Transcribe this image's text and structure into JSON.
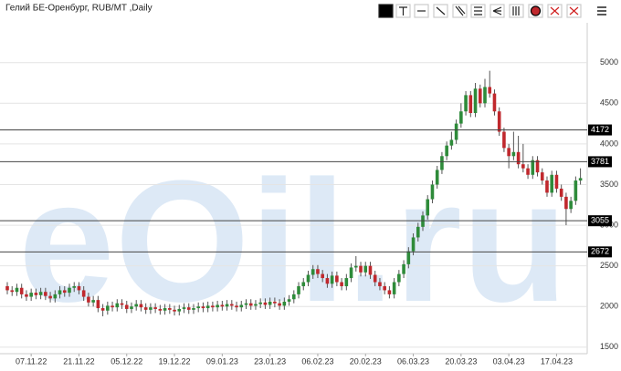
{
  "chart_data": {
    "type": "candlestick",
    "title": "Гелий БЕ-Оренбург, RUB/MT ,Daily",
    "watermark": "eOil.ru",
    "categories": [
      null,
      null,
      null,
      null,
      null,
      "07.11.22",
      null,
      null,
      null,
      null,
      null,
      null,
      null,
      null,
      null,
      "21.11.22",
      null,
      null,
      null,
      null,
      null,
      null,
      null,
      null,
      null,
      "05.12.22",
      null,
      null,
      null,
      null,
      null,
      null,
      null,
      null,
      null,
      "19.12.22",
      null,
      null,
      null,
      null,
      null,
      null,
      null,
      null,
      null,
      "09.01.23",
      null,
      null,
      null,
      null,
      null,
      null,
      null,
      null,
      null,
      "23.01.23",
      null,
      null,
      null,
      null,
      null,
      null,
      null,
      null,
      null,
      "06.02.23",
      null,
      null,
      null,
      null,
      null,
      null,
      null,
      null,
      null,
      "20.02.23",
      null,
      null,
      null,
      null,
      null,
      null,
      null,
      null,
      null,
      "06.03.23",
      null,
      null,
      null,
      null,
      null,
      null,
      null,
      null,
      null,
      "20.03.23",
      null,
      null,
      null,
      null,
      null,
      null,
      null,
      null,
      null,
      "03.04.23",
      null,
      null,
      null,
      null,
      null,
      null,
      null,
      null,
      null,
      "17.04.23",
      null,
      null,
      null,
      null,
      null
    ],
    "open": [
      2250,
      2200,
      2180,
      2230,
      2150,
      2120,
      2170,
      2140,
      2180,
      2130,
      2100,
      2150,
      2200,
      2170,
      2230,
      2250,
      2200,
      2120,
      2050,
      2080,
      1980,
      1950,
      2010,
      1990,
      2040,
      2020,
      1970,
      2000,
      2030,
      1990,
      1960,
      1990,
      1970,
      1950,
      1980,
      1960,
      1940,
      1970,
      1990,
      1960,
      1980,
      2000,
      1980,
      2010,
      1990,
      2020,
      2000,
      2030,
      2010,
      1990,
      2020,
      2040,
      2010,
      2030,
      2050,
      2020,
      2060,
      2040,
      2010,
      2060,
      2090,
      2150,
      2250,
      2300,
      2390,
      2460,
      2400,
      2350,
      2280,
      2380,
      2300,
      2250,
      2350,
      2480,
      2500,
      2420,
      2500,
      2390,
      2300,
      2250,
      2200,
      2150,
      2300,
      2400,
      2520,
      2680,
      2850,
      2980,
      3120,
      3320,
      3500,
      3680,
      3850,
      3980,
      4050,
      4250,
      4400,
      4600,
      4380,
      4680,
      4500,
      4700,
      4620,
      4400,
      4150,
      3950,
      3850,
      3900,
      3750,
      3700,
      3620,
      3800,
      3650,
      3550,
      3400,
      3620,
      3450,
      3350,
      3200,
      3300,
      3550
    ],
    "high": [
      2300,
      2250,
      2280,
      2280,
      2200,
      2220,
      2220,
      2230,
      2230,
      2180,
      2200,
      2250,
      2250,
      2280,
      2300,
      2300,
      2250,
      2170,
      2130,
      2130,
      2030,
      2060,
      2060,
      2090,
      2090,
      2070,
      2050,
      2080,
      2080,
      2040,
      2040,
      2040,
      2020,
      2030,
      2030,
      2010,
      2020,
      2040,
      2040,
      2030,
      2050,
      2050,
      2060,
      2060,
      2070,
      2070,
      2080,
      2080,
      2060,
      2070,
      2090,
      2090,
      2080,
      2100,
      2100,
      2110,
      2110,
      2090,
      2110,
      2140,
      2200,
      2300,
      2350,
      2440,
      2510,
      2510,
      2450,
      2400,
      2430,
      2430,
      2350,
      2400,
      2530,
      2620,
      2550,
      2550,
      2550,
      2440,
      2350,
      2300,
      2250,
      2350,
      2450,
      2570,
      2730,
      2900,
      3030,
      3170,
      3370,
      3550,
      3730,
      3900,
      4030,
      4150,
      4300,
      4500,
      4650,
      4650,
      4750,
      4730,
      4800,
      4900,
      4670,
      4450,
      4200,
      4000,
      4150,
      4100,
      4000,
      3750,
      3850,
      3850,
      3700,
      3600,
      3670,
      3670,
      3500,
      3400,
      3350,
      3600,
      3700
    ],
    "low": [
      2150,
      2130,
      2130,
      2100,
      2070,
      2070,
      2090,
      2090,
      2080,
      2050,
      2050,
      2100,
      2120,
      2120,
      2180,
      2150,
      2070,
      2000,
      2000,
      1930,
      1880,
      1900,
      1940,
      1940,
      1970,
      1920,
      1920,
      1950,
      1940,
      1910,
      1910,
      1920,
      1900,
      1900,
      1910,
      1890,
      1890,
      1920,
      1910,
      1910,
      1930,
      1930,
      1930,
      1940,
      1940,
      1950,
      1950,
      1960,
      1940,
      1940,
      1970,
      1960,
      1960,
      1980,
      1970,
      1970,
      1990,
      1960,
      1960,
      2010,
      2040,
      2100,
      2200,
      2250,
      2340,
      2350,
      2300,
      2230,
      2230,
      2250,
      2200,
      2200,
      2300,
      2430,
      2370,
      2370,
      2340,
      2250,
      2200,
      2150,
      2100,
      2100,
      2250,
      2350,
      2470,
      2630,
      2800,
      2930,
      3070,
      3270,
      3450,
      3630,
      3800,
      3930,
      4000,
      4200,
      4350,
      4330,
      4330,
      4450,
      4450,
      4570,
      4350,
      4100,
      3900,
      3700,
      3800,
      3700,
      3650,
      3570,
      3570,
      3600,
      3500,
      3350,
      3350,
      3400,
      3300,
      3000,
      3150,
      3250,
      3500
    ],
    "close": [
      2200,
      2180,
      2230,
      2150,
      2120,
      2170,
      2140,
      2180,
      2130,
      2100,
      2150,
      2200,
      2170,
      2230,
      2250,
      2200,
      2120,
      2050,
      2080,
      1980,
      1950,
      2010,
      1990,
      2040,
      2020,
      1970,
      2000,
      2030,
      1990,
      1960,
      1990,
      1970,
      1950,
      1980,
      1960,
      1940,
      1970,
      1990,
      1960,
      1980,
      2000,
      1980,
      2010,
      1990,
      2020,
      2000,
      2030,
      2010,
      1990,
      2020,
      2040,
      2010,
      2030,
      2050,
      2020,
      2060,
      2040,
      2010,
      2060,
      2090,
      2150,
      2250,
      2300,
      2390,
      2460,
      2400,
      2350,
      2280,
      2380,
      2300,
      2250,
      2350,
      2480,
      2500,
      2420,
      2500,
      2390,
      2300,
      2250,
      2200,
      2150,
      2300,
      2400,
      2520,
      2680,
      2850,
      2980,
      3120,
      3320,
      3500,
      3680,
      3850,
      3980,
      4050,
      4250,
      4400,
      4600,
      4380,
      4680,
      4500,
      4700,
      4620,
      4400,
      4150,
      3950,
      3850,
      3900,
      3750,
      3700,
      3620,
      3800,
      3650,
      3550,
      3400,
      3620,
      3450,
      3350,
      3200,
      3300,
      3550,
      3580
    ],
    "up_color": "#2e8b3a",
    "down_color": "#c0282d",
    "levels": [
      4172,
      3781,
      3055,
      2672
    ],
    "ylim": [
      1420,
      5490
    ],
    "yticks": [
      1500,
      2000,
      2500,
      3000,
      3500,
      4000,
      4500,
      5000
    ],
    "grid": true
  }
}
